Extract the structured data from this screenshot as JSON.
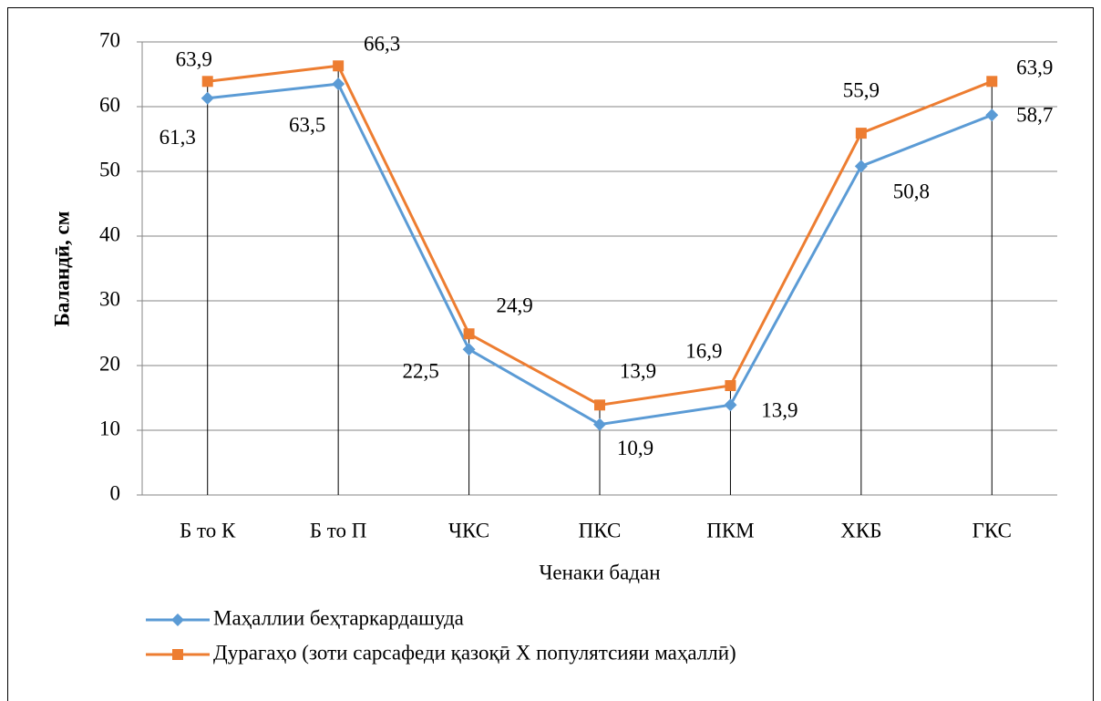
{
  "chart_data": {
    "type": "line",
    "x_label": "Ченаки бадан",
    "y_label": "Баландӣ, см",
    "categories": [
      "Б то К",
      "Б то П",
      "ЧКС",
      "ПКС",
      "ПКМ",
      "ХКБ",
      "ГКС"
    ],
    "series": [
      {
        "name": "Маҳаллии беҳтаркардашуда",
        "color": "#5b9bd5",
        "marker": "diamond",
        "values": [
          61.3,
          63.5,
          22.5,
          10.9,
          13.9,
          50.8,
          58.7
        ],
        "value_labels": [
          "61,3",
          "63,5",
          "22,5",
          "10,9",
          "13,9",
          "50,8",
          "58,7"
        ]
      },
      {
        "name": "Дурагаҳо (зоти сарсафеди қазоқӣ X популятсияи маҳаллӣ)",
        "color": "#ed7d31",
        "marker": "square",
        "values": [
          63.9,
          66.3,
          24.9,
          13.9,
          16.9,
          55.9,
          63.9
        ],
        "value_labels": [
          "63,9",
          "66,3",
          "24,9",
          "13,9",
          "16,9",
          "55,9",
          "63,9"
        ]
      }
    ],
    "ylim": [
      0,
      70
    ],
    "yticks": [
      0,
      10,
      20,
      30,
      40,
      50,
      60,
      70
    ],
    "grid": true,
    "drop_lines": true,
    "legend": "bottom"
  }
}
